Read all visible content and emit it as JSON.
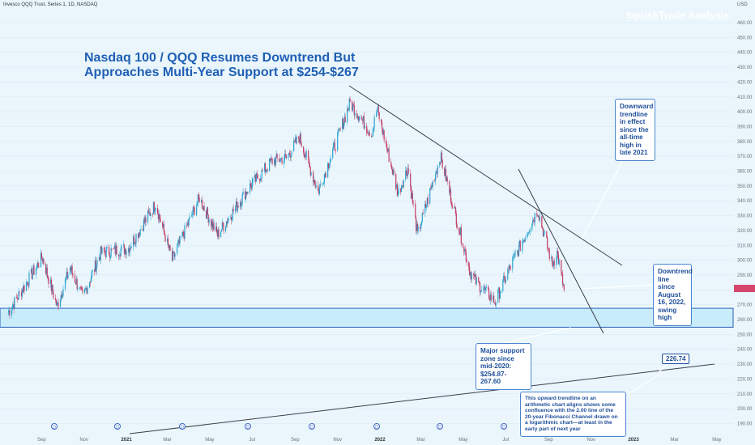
{
  "header": {
    "symbol_line": "Invesco QQQ Trust, Series 1, 1D, NASDAQ",
    "brand": "SquishTrade Analysis",
    "currency": "USD",
    "last_price_tag": ""
  },
  "annotations": {
    "title_line1": "Nasdaq 100 / QQQ Resumes Downtrend But",
    "title_line2": "Approaches Multi-Year Support at $254-$267",
    "note_downtrend_ath": "Downward trendline in effect since the all-time high in late 2021",
    "note_downtrend_aug": "Downtrend line since August 16, 2022, swing high",
    "note_support": "Major support zone since mid-2020: $254.87-267.60",
    "note_upward": "This upward trendline on an arithmetic chart aligns shows some confluence with the 2.00 line of the 20-year Fibonacci Channel drawn on a logarithmic chart—at least in the early part of next year",
    "price_tag": "226.74"
  },
  "colors": {
    "background": "#eaf6fc",
    "up_candle": "#2aa4cf",
    "down_candle": "#c43c66",
    "trendline": "#3a3f4b",
    "support_fill": "#c9ecfb",
    "support_border": "#2a5db8",
    "note_border": "#4a86d0",
    "note_text": "#1f4f9a",
    "title": "#1f5fb5"
  },
  "chart_data": {
    "type": "line",
    "title": "Nasdaq 100 / QQQ Resumes Downtrend But Approaches Multi-Year Support at $254-$267",
    "xlabel": "",
    "ylabel": "",
    "ylim": [
      183,
      470
    ],
    "y_ticks": [
      190,
      200,
      210,
      220,
      230,
      240,
      250,
      260,
      270,
      280,
      290,
      300,
      310,
      320,
      330,
      340,
      350,
      360,
      370,
      380,
      390,
      400,
      410,
      420,
      430,
      440,
      450,
      460
    ],
    "x_ticks": [
      "Sep",
      "Nov",
      "2021",
      "Mar",
      "May",
      "Jul",
      "Sep",
      "Nov",
      "2022",
      "Mar",
      "May",
      "Jul",
      "Sep",
      "Nov",
      "2023",
      "Mar",
      "May"
    ],
    "x_ticks_bold": [
      "2021",
      "2022",
      "2023"
    ],
    "series": [
      {
        "x": [
          "2020-07-15",
          "2020-09-02",
          "2020-09-23",
          "2020-10-12",
          "2020-10-30",
          "2020-11-25",
          "2021-01-04",
          "2021-02-12",
          "2021-03-08",
          "2021-04-16",
          "2021-05-12",
          "2021-06-25",
          "2021-07-30",
          "2021-08-20",
          "2021-09-07",
          "2021-10-04",
          "2021-11-19",
          "2021-12-20",
          "2021-12-28",
          "2022-01-27",
          "2022-02-10",
          "2022-02-24",
          "2022-03-29",
          "2022-05-11",
          "2022-05-20",
          "2022-06-16",
          "2022-07-08",
          "2022-08-16",
          "2022-09-06",
          "2022-09-13",
          "2022-09-23"
        ],
        "values": [
          265,
          302,
          269,
          295,
          275,
          305,
          308,
          338,
          300,
          342,
          317,
          348,
          367,
          369,
          383,
          346,
          406,
          385,
          402,
          345,
          362,
          317,
          370,
          292,
          285,
          272,
          296,
          334,
          297,
          305,
          280
        ]
      }
    ],
    "support_zone": [
      254.87,
      267.6
    ]
  }
}
